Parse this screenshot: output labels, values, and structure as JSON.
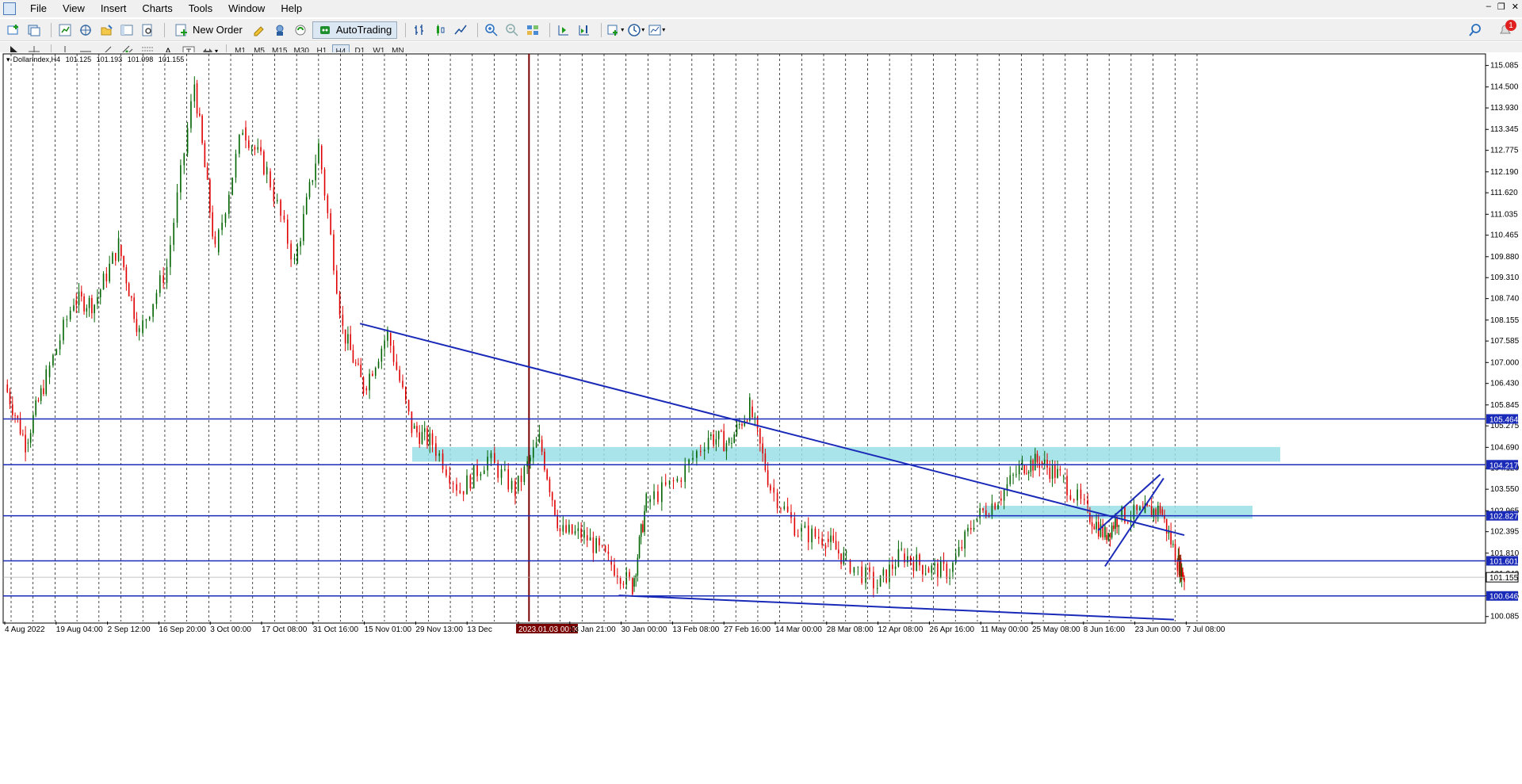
{
  "menu": [
    "File",
    "View",
    "Insert",
    "Charts",
    "Tools",
    "Window",
    "Help"
  ],
  "window_controls": [
    "–",
    "❐",
    "✕"
  ],
  "toolbar": {
    "new_order_label": "New Order",
    "autotrading_label": "AutoTrading",
    "notification_count": "1"
  },
  "timeframes": [
    "M1",
    "M5",
    "M15",
    "M30",
    "H1",
    "H4",
    "D1",
    "W1",
    "MN"
  ],
  "active_timeframe": "H4",
  "chart_header": {
    "symbol": "DollarIndex,H4",
    "open": "101.125",
    "high": "101.193",
    "low": "101.098",
    "close": "101.155"
  },
  "colors": {
    "bull_candle": "#006400",
    "bear_candle": "#e00000",
    "trend_line": "#1a2ab8",
    "zone": "#9adfe6",
    "vline_marker": "#7a0000",
    "grid": "#000000"
  },
  "chart_data": {
    "type": "candlestick",
    "symbol": "DollarIndex",
    "timeframe": "H4",
    "price_ticks": [
      "115.085",
      "114.500",
      "113.930",
      "113.345",
      "112.775",
      "112.190",
      "111.620",
      "111.035",
      "110.465",
      "109.880",
      "109.310",
      "108.740",
      "108.155",
      "107.585",
      "107.000",
      "106.430",
      "105.845",
      "105.275",
      "104.690",
      "104.120",
      "103.550",
      "102.965",
      "102.395",
      "101.810",
      "101.240",
      "100.655",
      "100.085"
    ],
    "y_range": [
      99.95,
      115.4
    ],
    "time_ticks": [
      "4 Aug 2022",
      "19 Aug 04:00",
      "2 Sep 12:00",
      "16 Sep 20:00",
      "3 Oct 00:00",
      "17 Oct 08:00",
      "31 Oct 16:00",
      "15 Nov 01:00",
      "29 Nov 13:00",
      "13 Dec",
      "2023.01.03 00:00",
      "13 Jan 21:00",
      "30 Jan 00:00",
      "13 Feb 08:00",
      "27 Feb 16:00",
      "14 Mar 00:00",
      "28 Mar 08:00",
      "12 Apr 08:00",
      "26 Apr 16:00",
      "11 May 00:00",
      "25 May 08:00",
      "8 Jun 16:00",
      "23 Jun 00:00",
      "7 Jul 08:00"
    ],
    "highlighted_time_label": "2023.01.03 00:00",
    "horizontal_levels": [
      {
        "label": "105.464",
        "value": 105.464
      },
      {
        "label": "104.217",
        "value": 104.217
      },
      {
        "label": "102.827",
        "value": 102.827
      },
      {
        "label": "101.601",
        "value": 101.601
      },
      {
        "label": "100.646",
        "value": 100.646
      }
    ],
    "current_price_label": "101.155",
    "current_price": 101.155,
    "zones": [
      {
        "from": 104.3,
        "to": 104.7
      },
      {
        "from": 102.75,
        "to": 103.1
      }
    ],
    "trendlines": [
      {
        "x0": "2022-11-15",
        "y0": 108.06,
        "x1": "2023-07-12",
        "y1": 102.3
      },
      {
        "x0": "2023-01-29",
        "y0": 100.66,
        "x1": "2023-07-09",
        "y1": 100.0
      },
      {
        "x0": "2023-06-19",
        "y0": 101.45,
        "x1": "2023-07-06",
        "y1": 103.85
      },
      {
        "x0": "2023-06-17",
        "y0": 102.43,
        "x1": "2023-07-05",
        "y1": 103.95
      }
    ],
    "price_path": [
      {
        "t": "2022-08-04",
        "p": 106.4
      },
      {
        "t": "2022-08-10",
        "p": 104.8
      },
      {
        "t": "2022-08-16",
        "p": 106.6
      },
      {
        "t": "2022-08-24",
        "p": 108.7
      },
      {
        "t": "2022-08-30",
        "p": 108.6
      },
      {
        "t": "2022-09-06",
        "p": 110.2
      },
      {
        "t": "2022-09-12",
        "p": 107.8
      },
      {
        "t": "2022-09-20",
        "p": 109.6
      },
      {
        "t": "2022-09-28",
        "p": 114.6
      },
      {
        "t": "2022-10-04",
        "p": 110.0
      },
      {
        "t": "2022-10-12",
        "p": 113.4
      },
      {
        "t": "2022-10-19",
        "p": 112.2
      },
      {
        "t": "2022-10-27",
        "p": 109.7
      },
      {
        "t": "2022-11-03",
        "p": 112.9
      },
      {
        "t": "2022-11-10",
        "p": 107.9
      },
      {
        "t": "2022-11-16",
        "p": 106.3
      },
      {
        "t": "2022-11-23",
        "p": 107.8
      },
      {
        "t": "2022-11-30",
        "p": 105.2
      },
      {
        "t": "2022-12-06",
        "p": 104.8
      },
      {
        "t": "2022-12-14",
        "p": 103.5
      },
      {
        "t": "2022-12-22",
        "p": 104.4
      },
      {
        "t": "2022-12-30",
        "p": 103.5
      },
      {
        "t": "2023-01-06",
        "p": 104.9
      },
      {
        "t": "2023-01-12",
        "p": 102.4
      },
      {
        "t": "2023-01-19",
        "p": 102.3
      },
      {
        "t": "2023-01-26",
        "p": 101.6
      },
      {
        "t": "2023-02-02",
        "p": 100.9
      },
      {
        "t": "2023-02-06",
        "p": 103.2
      },
      {
        "t": "2023-02-15",
        "p": 103.8
      },
      {
        "t": "2023-02-24",
        "p": 105.0
      },
      {
        "t": "2023-03-02",
        "p": 104.8
      },
      {
        "t": "2023-03-08",
        "p": 105.8
      },
      {
        "t": "2023-03-14",
        "p": 103.6
      },
      {
        "t": "2023-03-22",
        "p": 102.4
      },
      {
        "t": "2023-03-30",
        "p": 102.2
      },
      {
        "t": "2023-04-05",
        "p": 101.6
      },
      {
        "t": "2023-04-14",
        "p": 100.9
      },
      {
        "t": "2023-04-21",
        "p": 101.8
      },
      {
        "t": "2023-04-28",
        "p": 101.4
      },
      {
        "t": "2023-05-05",
        "p": 101.3
      },
      {
        "t": "2023-05-12",
        "p": 102.7
      },
      {
        "t": "2023-05-19",
        "p": 103.3
      },
      {
        "t": "2023-05-26",
        "p": 104.2
      },
      {
        "t": "2023-05-31",
        "p": 104.3
      },
      {
        "t": "2023-06-06",
        "p": 103.9
      },
      {
        "t": "2023-06-14",
        "p": 102.9
      },
      {
        "t": "2023-06-19",
        "p": 102.3
      },
      {
        "t": "2023-06-23",
        "p": 102.8
      },
      {
        "t": "2023-06-30",
        "p": 102.9
      },
      {
        "t": "2023-07-05",
        "p": 103.0
      },
      {
        "t": "2023-07-10",
        "p": 101.6
      },
      {
        "t": "2023-07-12",
        "p": 101.155
      }
    ]
  }
}
